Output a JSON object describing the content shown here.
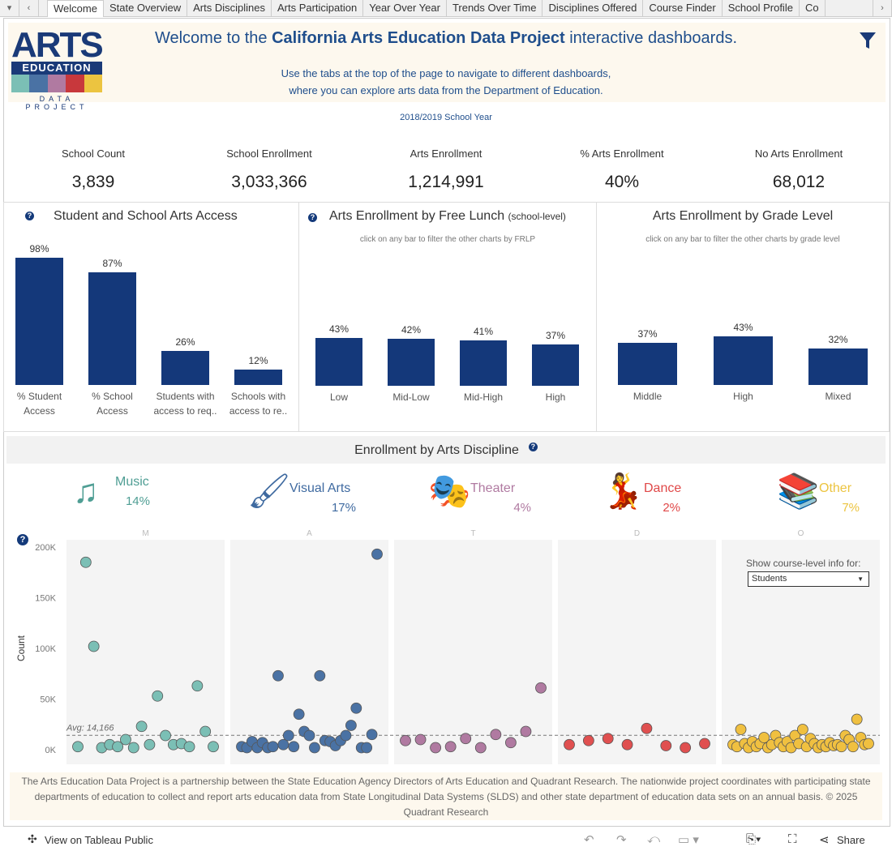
{
  "tabs": {
    "items": [
      "Welcome",
      "State Overview",
      "Arts Disciplines",
      "Arts Participation",
      "Year Over Year",
      "Trends Over Time",
      "Disciplines Offered",
      "Course Finder",
      "School Profile",
      "Co"
    ],
    "active": "Welcome"
  },
  "logo": {
    "title": "ARTS",
    "subtitle": "EDUCATION",
    "tagline": "DATA PROJECT"
  },
  "header": {
    "welcome_pre": "Welcome to the ",
    "welcome_bold": "California Arts Education Data Project",
    "welcome_post": " interactive dashboards.",
    "intro_line1": "Use the tabs at the top of the page to navigate to different dashboards,",
    "intro_line2": "where you can explore arts data from the Department of Education."
  },
  "school_year": "2018/2019 School Year",
  "kpis": [
    {
      "label": "School Count",
      "value": "3,839"
    },
    {
      "label": "School Enrollment",
      "value": "3,033,366"
    },
    {
      "label": "Arts Enrollment",
      "value": "1,214,991"
    },
    {
      "label": "% Arts Enrollment",
      "value": "40%"
    },
    {
      "label": "No Arts Enrollment",
      "value": "68,012"
    }
  ],
  "colors": {
    "bar": "#14387a",
    "music": "#7bbfb5",
    "visual_arts": "#4a72a4",
    "theater": "#b07aa1",
    "dance": "#e05050",
    "other": "#f0c040"
  },
  "chart_data": [
    {
      "type": "bar",
      "title": "Student and School Arts Access",
      "categories": [
        [
          "% Student",
          "Access"
        ],
        [
          "% School",
          "Access"
        ],
        [
          "Students with",
          "access to req.."
        ],
        [
          "Schools with",
          "access to re.."
        ]
      ],
      "values": [
        98,
        87,
        26,
        12
      ],
      "labels": [
        "98%",
        "87%",
        "26%",
        "12%"
      ]
    },
    {
      "type": "bar",
      "title": "Arts Enrollment by Free Lunch",
      "title_suffix": "(school-level)",
      "subtitle": "click on any bar to filter the other charts by FRLP",
      "categories": [
        "Low",
        "Mid-Low",
        "Mid-High",
        "High"
      ],
      "values": [
        43,
        42,
        41,
        37
      ],
      "labels": [
        "43%",
        "42%",
        "41%",
        "37%"
      ]
    },
    {
      "type": "bar",
      "title": "Arts Enrollment by Grade Level",
      "subtitle": "click on any bar to filter the other charts by grade level",
      "categories": [
        "Middle",
        "High",
        "Mixed"
      ],
      "values": [
        37,
        43,
        32
      ],
      "labels": [
        "37%",
        "43%",
        "32%"
      ]
    },
    {
      "type": "scatter",
      "title": "Enrollment by Arts Discipline",
      "ylabel": "Count",
      "ylim": [
        0,
        200000
      ],
      "yticks": [
        "0K",
        "50K",
        "100K",
        "150K",
        "200K"
      ],
      "reference_line": {
        "label": "Avg: 14,166",
        "value": 14166
      },
      "panels": [
        {
          "key": "M",
          "color": "#7bbfb5",
          "values": [
            3000,
            185000,
            102000,
            2000,
            5000,
            3000,
            10000,
            2000,
            23000,
            5000,
            53000,
            14000,
            5000,
            6000,
            3000,
            63000,
            18000,
            3000
          ]
        },
        {
          "key": "A",
          "color": "#4a72a4",
          "values": [
            3000,
            2000,
            8000,
            2000,
            7000,
            2000,
            3000,
            73000,
            5000,
            14000,
            3000,
            35000,
            18000,
            14000,
            2000,
            73000,
            9000,
            8000,
            4000,
            9000,
            14000,
            24000,
            41000,
            2000,
            2000,
            15000,
            193000
          ]
        },
        {
          "key": "T",
          "color": "#b07aa1",
          "values": [
            9000,
            10000,
            2000,
            3000,
            11000,
            2000,
            15000,
            7000,
            18000,
            61000
          ]
        },
        {
          "key": "D",
          "color": "#e05050",
          "values": [
            5000,
            9000,
            11000,
            5000,
            21000,
            4000,
            2000,
            6000
          ]
        },
        {
          "key": "O",
          "color": "#f0c040",
          "values": [
            5000,
            3000,
            20000,
            6000,
            2000,
            8000,
            3000,
            6000,
            12000,
            2000,
            5000,
            14000,
            7000,
            3000,
            8000,
            2000,
            14000,
            6000,
            20000,
            3000,
            11000,
            6000,
            2000,
            5000,
            3000,
            7000,
            4000,
            5000,
            3000,
            14000,
            10000,
            3000,
            30000,
            12000,
            5000,
            6000
          ]
        }
      ]
    }
  ],
  "disciplines": [
    {
      "name": "Music",
      "pct": "14%",
      "icon": "music-note-icon",
      "color": "#4f9e94"
    },
    {
      "name": "Visual Arts",
      "pct": "17%",
      "icon": "paintbrush-icon",
      "color": "#3f6aa0"
    },
    {
      "name": "Theater",
      "pct": "4%",
      "icon": "theater-masks-icon",
      "color": "#b07aa1"
    },
    {
      "name": "Dance",
      "pct": "2%",
      "icon": "dancers-icon",
      "color": "#e04848"
    },
    {
      "name": "Other",
      "pct": "7%",
      "icon": "stacked-books-icon",
      "color": "#ecc440"
    }
  ],
  "course_filter": {
    "label": "Show course-level info for:",
    "value": "Students"
  },
  "footer": {
    "text": "The Arts Education Data Project is a partnership between the State Education Agency Directors of Arts Education and Quadrant Research. The nationwide project coordinates with participating state departments of education to collect and report arts education data from State Longitudinal Data Systems (SLDS) and other state department of education data sets on an annual basis.  © 2025 Quadrant Research"
  },
  "toolbar": {
    "view_on": "View on Tableau Public",
    "share": "Share"
  }
}
